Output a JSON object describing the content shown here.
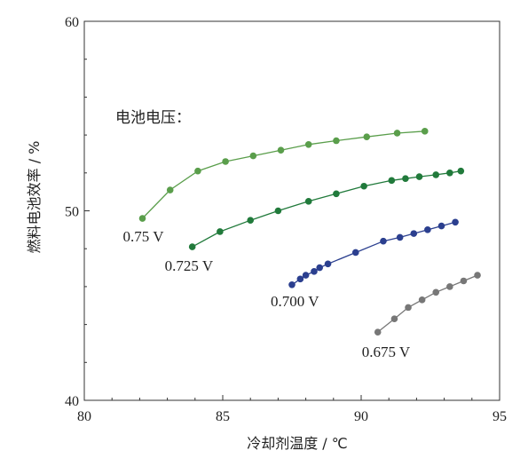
{
  "chart_data": {
    "type": "line",
    "title": "",
    "xlabel": "冷却剂温度 / ℃",
    "ylabel": "燃料电池效率 / %",
    "xlim": [
      80,
      95
    ],
    "ylim": [
      40,
      60
    ],
    "xticks": [
      80,
      85,
      90,
      95
    ],
    "yticks": [
      40,
      50,
      60
    ],
    "grid": false,
    "annotation": "电池电压：",
    "series": [
      {
        "name": "0.75 V",
        "color": "#5a9e4b",
        "x": [
          82.1,
          83.1,
          84.1,
          85.1,
          86.1,
          87.1,
          88.1,
          89.1,
          90.2,
          91.3,
          92.3
        ],
        "y": [
          49.6,
          51.1,
          52.1,
          52.6,
          52.9,
          53.2,
          53.5,
          53.7,
          53.9,
          54.1,
          54.2
        ]
      },
      {
        "name": "0.725 V",
        "color": "#217a3b",
        "x": [
          83.9,
          84.9,
          86.0,
          87.0,
          88.1,
          89.1,
          90.1,
          91.1,
          91.6,
          92.1,
          92.7,
          93.2,
          93.6
        ],
        "y": [
          48.1,
          48.9,
          49.5,
          50.0,
          50.5,
          50.9,
          51.3,
          51.6,
          51.7,
          51.8,
          51.9,
          52.0,
          52.1
        ]
      },
      {
        "name": "0.700 V",
        "color": "#2b3f8f",
        "x": [
          87.5,
          87.8,
          88.0,
          88.3,
          88.5,
          88.8,
          89.8,
          90.8,
          91.4,
          91.9,
          92.4,
          92.9,
          93.4
        ],
        "y": [
          46.1,
          46.4,
          46.6,
          46.8,
          47.0,
          47.2,
          47.8,
          48.4,
          48.6,
          48.8,
          49.0,
          49.2,
          49.4
        ]
      },
      {
        "name": "0.675 V",
        "color": "#777777",
        "x": [
          90.6,
          91.2,
          91.7,
          92.2,
          92.7,
          93.2,
          93.7,
          94.2
        ],
        "y": [
          43.6,
          44.3,
          44.9,
          45.3,
          45.7,
          46.0,
          46.3,
          46.6
        ]
      }
    ]
  }
}
